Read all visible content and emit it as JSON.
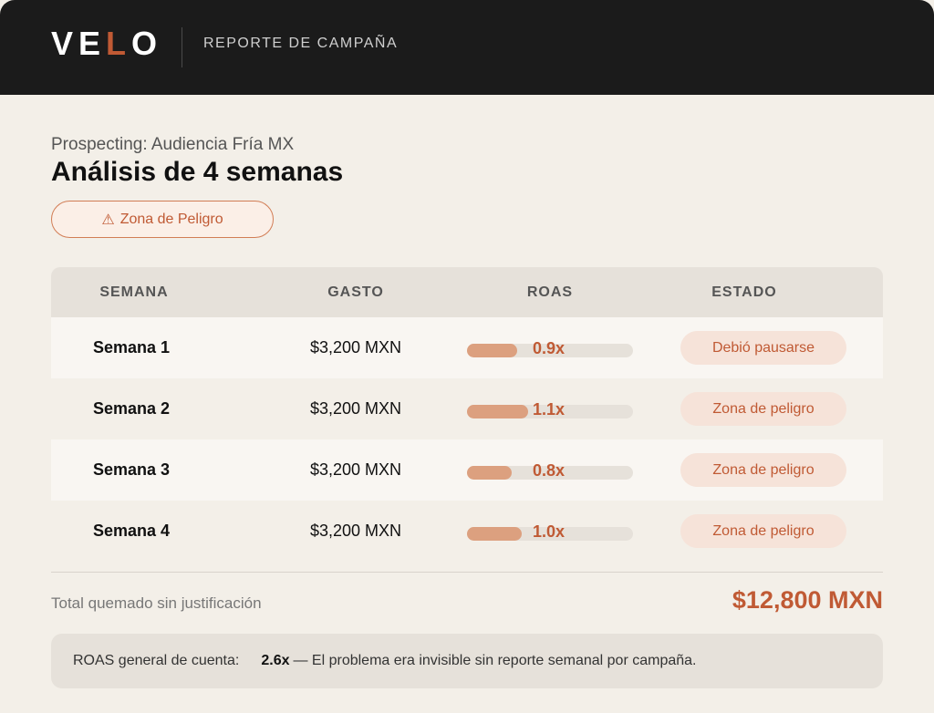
{
  "header": {
    "logo_parts": [
      "VE",
      "L",
      "O"
    ],
    "report_label": "REPORTE DE CAMPAÑA"
  },
  "campaign": {
    "subtitle": "Prospecting: Audiencia Fría MX",
    "title": "Análisis de 4 semanas",
    "badge_icon": "⚠",
    "badge_label": "Zona de Peligro"
  },
  "table": {
    "headers": [
      "SEMANA",
      "GASTO",
      "ROAS",
      "ESTADO"
    ],
    "rows": [
      {
        "week": "Semana 1",
        "spend": "$3,200 MXN",
        "roas": "0.9x",
        "roas_fraction": 0.3,
        "status": "Debió pausarse"
      },
      {
        "week": "Semana 2",
        "spend": "$3,200 MXN",
        "roas": "1.1x",
        "roas_fraction": 0.37,
        "status": "Zona de peligro"
      },
      {
        "week": "Semana 3",
        "spend": "$3,200 MXN",
        "roas": "0.8x",
        "roas_fraction": 0.27,
        "status": "Zona de peligro"
      },
      {
        "week": "Semana 4",
        "spend": "$3,200 MXN",
        "roas": "1.0x",
        "roas_fraction": 0.33,
        "status": "Zona de peligro"
      }
    ]
  },
  "summary": {
    "total_label": "Total quemado sin justificación",
    "total_value": "$12,800 MXN"
  },
  "footer": {
    "label": "ROAS general de cuenta:",
    "value": "2.6x",
    "note": "— El problema era invisible sin reporte semanal por campaña."
  },
  "colors": {
    "accent": "#c05a34",
    "header_bg": "#1b1b1b",
    "page_bg": "#f3efe8",
    "bar_fill": "#dca07f"
  }
}
